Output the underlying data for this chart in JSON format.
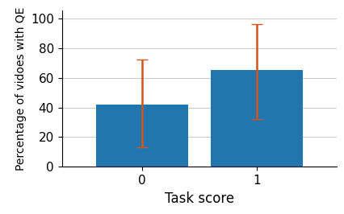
{
  "categories": [
    "0",
    "1"
  ],
  "values": [
    42,
    65
  ],
  "yerr_lower": [
    29,
    33
  ],
  "yerr_upper": [
    30,
    31
  ],
  "bar_color": "#2176AE",
  "error_color": "#D4541B",
  "xlabel": "Task score",
  "ylabel": "Percentage of vidoes with QE",
  "ylim": [
    0,
    105
  ],
  "yticks": [
    0,
    20,
    40,
    60,
    80,
    100
  ],
  "bar_width": 0.8,
  "label_fontsize": 12,
  "tick_fontsize": 11,
  "ylabel_fontsize": 10,
  "error_linewidth": 1.8,
  "error_capsize": 5,
  "grid_color": "#CCCCCC",
  "grid_linewidth": 0.8
}
